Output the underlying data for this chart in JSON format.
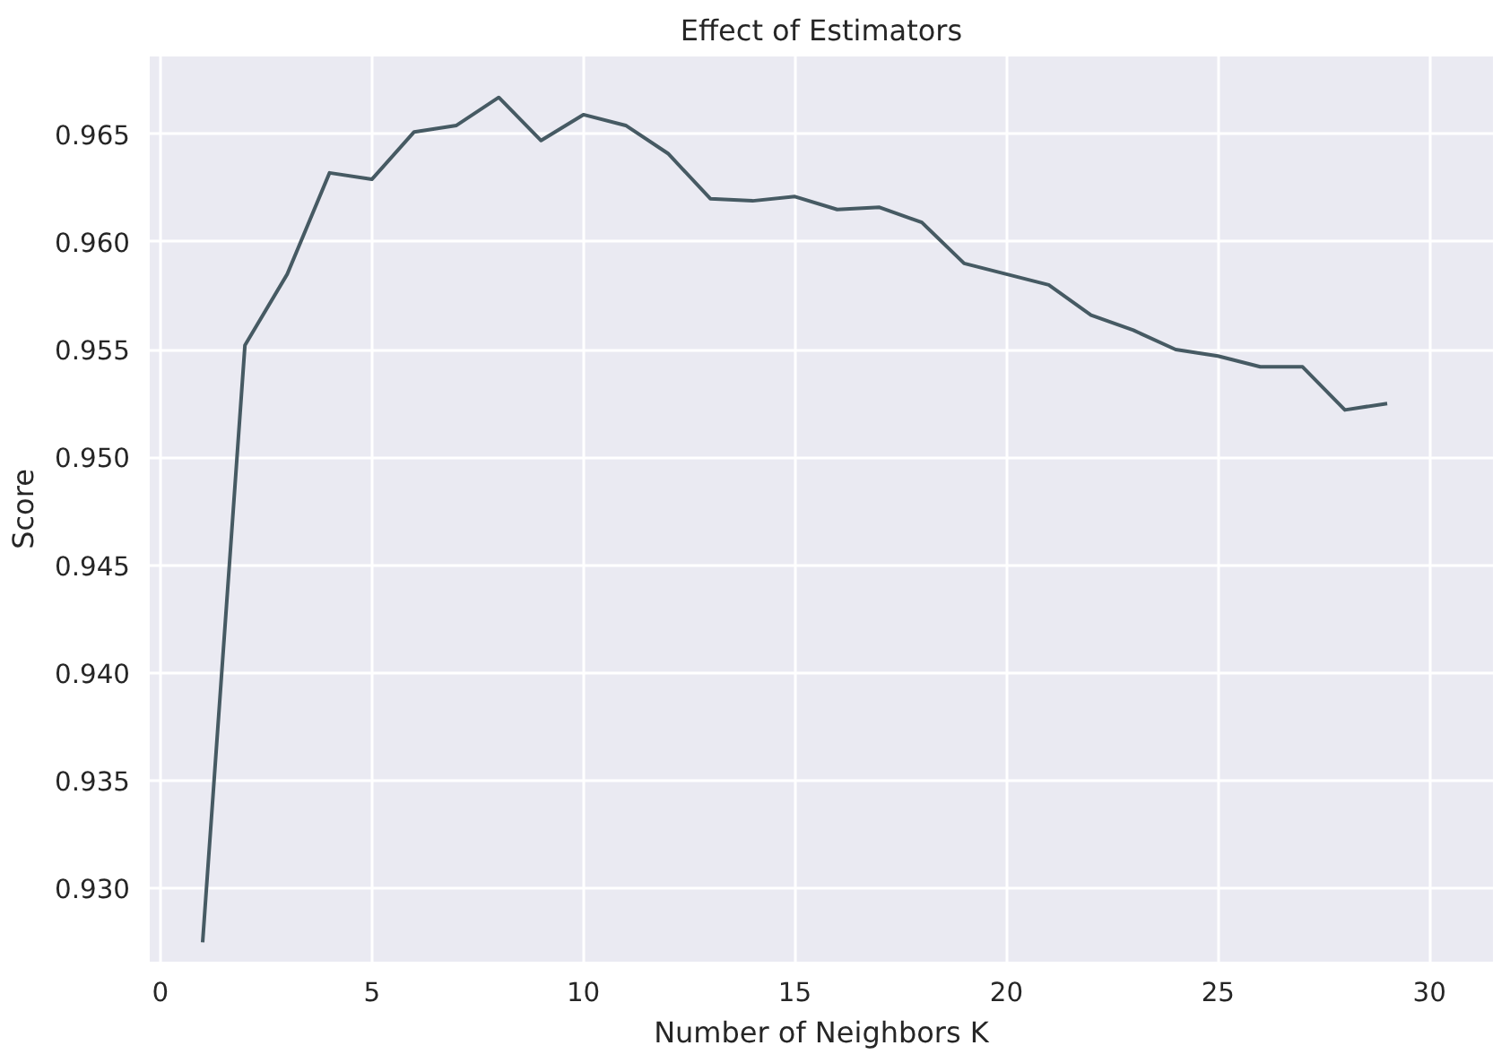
{
  "chart_data": {
    "type": "line",
    "title": "Effect of Estimators",
    "xlabel": "Number of Neighbors K",
    "ylabel": "Score",
    "x": [
      1,
      2,
      3,
      4,
      5,
      6,
      7,
      8,
      9,
      10,
      11,
      12,
      13,
      14,
      15,
      16,
      17,
      18,
      19,
      20,
      21,
      22,
      23,
      24,
      25,
      26,
      27,
      28,
      29
    ],
    "series": [
      {
        "color": "#465a63",
        "values": [
          0.9275,
          0.9552,
          0.9585,
          0.9632,
          0.9629,
          0.9651,
          0.9654,
          0.9667,
          0.9647,
          0.9659,
          0.9654,
          0.9641,
          0.962,
          0.9619,
          0.9621,
          0.9615,
          0.9616,
          0.9609,
          0.959,
          0.9585,
          0.958,
          0.9566,
          0.9559,
          0.955,
          0.9547,
          0.9542,
          0.9542,
          0.9522,
          0.9525
        ]
      }
    ],
    "xlim": [
      -0.25,
      31.5
    ],
    "ylim": [
      0.9266,
      0.9686
    ],
    "xticks": [
      0,
      5,
      10,
      15,
      20,
      25,
      30
    ],
    "yticks": [
      {
        "value": 0.93,
        "label": "0.930"
      },
      {
        "value": 0.935,
        "label": "0.935"
      },
      {
        "value": 0.94,
        "label": "0.940"
      },
      {
        "value": 0.945,
        "label": "0.945"
      },
      {
        "value": 0.95,
        "label": "0.950"
      },
      {
        "value": 0.955,
        "label": "0.955"
      },
      {
        "value": 0.96,
        "label": "0.960"
      },
      {
        "value": 0.965,
        "label": "0.965"
      }
    ],
    "grid": true,
    "line_style": "solid",
    "marker": "none"
  }
}
